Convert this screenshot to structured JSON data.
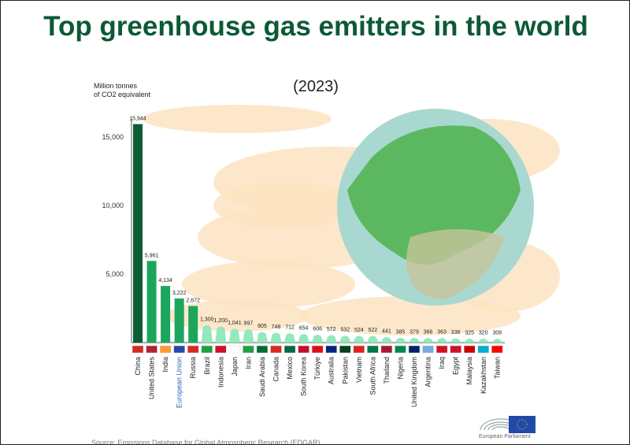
{
  "title": "Top greenhouse gas emitters in the world",
  "year": "(2023)",
  "source": "Source: Emissions Database for Global Atmospheric Research (EDGAR)",
  "logo_text": "European Parliament",
  "colors": {
    "top": "#0d5c36",
    "major": "#1ca65c",
    "minor": "#93e9bb",
    "title": "#0c5a34",
    "eu_label": "#2c5fb8"
  },
  "chart_data": {
    "type": "bar",
    "ylabel": "Million tonnes of CO2 equivalent",
    "ylabel_lines": [
      "Million tonnes",
      "of CO2 equivalent"
    ],
    "ylim": [
      0,
      15000
    ],
    "yticks": [
      {
        "v": 5000,
        "label": "5,000"
      },
      {
        "v": 10000,
        "label": "10,000"
      },
      {
        "v": 15000,
        "label": "15,000"
      }
    ],
    "categories": [
      "China",
      "United States",
      "India",
      "European Union",
      "Russia",
      "Brazil",
      "Indonesia",
      "Japan",
      "Iran",
      "Saudi Arabia",
      "Canada",
      "Mexico",
      "South Korea",
      "Türkiye",
      "Australia",
      "Pakistan",
      "Vietnam",
      "South Africa",
      "Thailand",
      "Nigeria",
      "United Kingdom",
      "Argentina",
      "Iraq",
      "Egypt",
      "Malaysia",
      "Kazakhstan",
      "Taiwan"
    ],
    "values": [
      15944,
      5961,
      4134,
      3222,
      2672,
      1300,
      1200,
      1041,
      997,
      805,
      748,
      712,
      654,
      606,
      572,
      532,
      524,
      522,
      441,
      385,
      379,
      366,
      363,
      336,
      325,
      320,
      308
    ],
    "labels": [
      "15,944",
      "5,961",
      "4,134",
      "3,222",
      "2,672",
      "1,300",
      "1,200",
      "1,041",
      "997",
      "805",
      "748",
      "712",
      "654",
      "606",
      "572",
      "532",
      "524",
      "522",
      "441",
      "385",
      "379",
      "366",
      "363",
      "336",
      "325",
      "320",
      "308"
    ]
  }
}
